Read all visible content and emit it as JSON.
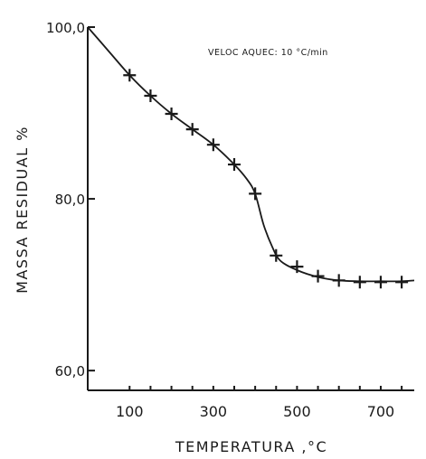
{
  "chart_data": {
    "type": "line",
    "title": "",
    "annotation": "VELOC AQUEC: 10 °C/min",
    "xlabel": "TEMPERATURA ,°C",
    "ylabel": "MASSA RESIDUAL  %",
    "xlim": [
      0,
      780
    ],
    "ylim": [
      57.7,
      100
    ],
    "xticks": [
      100,
      150,
      200,
      250,
      300,
      350,
      400,
      450,
      500,
      550,
      600,
      650,
      700,
      750
    ],
    "xtick_labels": [
      {
        "value": 100,
        "label": "100"
      },
      {
        "value": 300,
        "label": "300"
      },
      {
        "value": 500,
        "label": "500"
      },
      {
        "value": 700,
        "label": "700"
      }
    ],
    "ytick_labels": [
      {
        "value": 100,
        "label": "100,0"
      },
      {
        "value": 80,
        "label": "80,0"
      },
      {
        "value": 60,
        "label": "60,0"
      }
    ],
    "grid": false,
    "curve": {
      "x": [
        0,
        50,
        100,
        150,
        200,
        250,
        300,
        350,
        380,
        400,
        420,
        440,
        460,
        500,
        550,
        600,
        650,
        700,
        750,
        780
      ],
      "y": [
        100,
        97.2,
        94.4,
        92.0,
        89.9,
        88.1,
        86.3,
        84.0,
        82.3,
        80.6,
        77.0,
        74.5,
        72.8,
        71.7,
        70.9,
        70.5,
        70.4,
        70.4,
        70.4,
        70.5
      ]
    },
    "markers": {
      "x": [
        100,
        150,
        200,
        250,
        300,
        350,
        400,
        450,
        500,
        550,
        600,
        650,
        700,
        750
      ],
      "y": [
        94.4,
        92.0,
        89.9,
        88.1,
        86.3,
        84.0,
        80.6,
        73.4,
        72.1,
        71.0,
        70.5,
        70.3,
        70.3,
        70.3
      ]
    }
  }
}
